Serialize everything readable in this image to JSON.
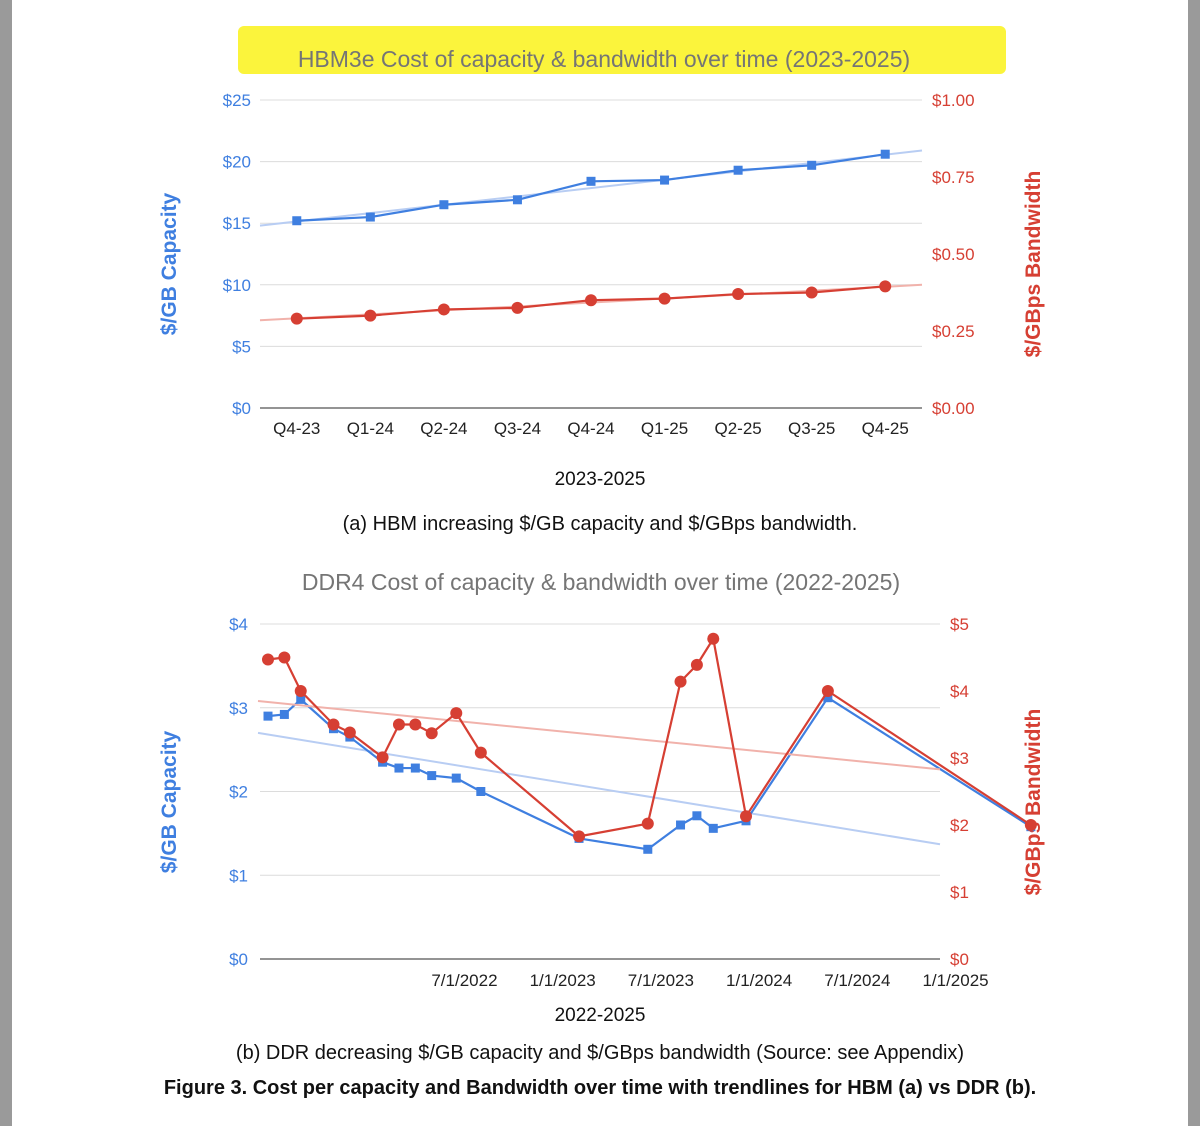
{
  "colors": {
    "capacity": "#3f7fe0",
    "bandwidth": "#d63f33",
    "capacity_trend": "#b8cdf3",
    "bandwidth_trend": "#f1b2ab",
    "title_gray": "#757575",
    "grid": "#dcdcdc",
    "highlight": "#fbf43c"
  },
  "chart_data": [
    {
      "type": "line",
      "title": "HBM3e Cost of capacity & bandwidth over time (2023-2025)",
      "xlabel": "2023-2025",
      "ylabel_left": "$/GB Capacity",
      "ylabel_right": "$/GBps Bandwidth",
      "categories": [
        "Q4-23",
        "Q1-24",
        "Q2-24",
        "Q3-24",
        "Q4-24",
        "Q1-25",
        "Q2-25",
        "Q3-25",
        "Q4-25"
      ],
      "left_ticks": [
        "$0",
        "$5",
        "$10",
        "$15",
        "$20",
        "$25"
      ],
      "right_ticks": [
        "$0.00",
        "$0.25",
        "$0.50",
        "$0.75",
        "$1.00"
      ],
      "ylim_left": [
        0,
        25
      ],
      "ylim_right": [
        0,
        1.0
      ],
      "series": [
        {
          "name": "$/GB Capacity",
          "axis": "left",
          "marker": "square",
          "values": [
            15.2,
            15.5,
            16.5,
            16.9,
            18.4,
            18.5,
            19.3,
            19.7,
            20.6
          ],
          "trendline": [
            14.8,
            20.9
          ]
        },
        {
          "name": "$/GBps Bandwidth",
          "axis": "right",
          "marker": "circle",
          "values": [
            0.29,
            0.3,
            0.32,
            0.325,
            0.35,
            0.355,
            0.37,
            0.375,
            0.395
          ],
          "trendline": [
            0.285,
            0.4
          ]
        }
      ],
      "caption": "(a) HBM increasing $/GB capacity and $/GBps bandwidth."
    },
    {
      "type": "line",
      "title": "DDR4 Cost of capacity & bandwidth over time (2022-2025)",
      "xlabel": "2022-2025",
      "ylabel_left": "$/GB Capacity",
      "ylabel_right": "$/GBps Bandwidth",
      "x_tick_labels": [
        "7/1/2022",
        "1/1/2023",
        "7/1/2023",
        "1/1/2024",
        "7/1/2024",
        "1/1/2025"
      ],
      "x_tick_months": [
        6,
        12,
        18,
        24,
        30,
        36
      ],
      "xlim_months": [
        -6,
        34.5
      ],
      "left_ticks": [
        "$0",
        "$1",
        "$2",
        "$3",
        "$4"
      ],
      "right_ticks": [
        "$0",
        "$1",
        "$2",
        "$3",
        "$4",
        "$5"
      ],
      "ylim_left": [
        0,
        4
      ],
      "ylim_right": [
        0,
        5
      ],
      "series": [
        {
          "name": "$/GB Capacity",
          "axis": "left",
          "marker": "square",
          "x": [
            -6,
            -5,
            -4,
            -2,
            -1,
            1,
            2,
            3,
            4,
            5.5,
            7,
            13,
            17.2,
            19.2,
            20.2,
            21.2,
            23.2,
            28.2,
            40.6
          ],
          "values": [
            2.9,
            2.92,
            3.1,
            2.75,
            2.65,
            2.35,
            2.28,
            2.28,
            2.19,
            2.16,
            2.0,
            1.44,
            1.31,
            1.6,
            1.71,
            1.56,
            1.65,
            3.12,
            1.58
          ],
          "trendline": [
            2.7,
            1.37
          ]
        },
        {
          "name": "$/GBps Bandwidth",
          "axis": "right",
          "marker": "circle",
          "x": [
            -6,
            -5,
            -4,
            -2,
            -1,
            1,
            2,
            3,
            4,
            5.5,
            7,
            13,
            17.2,
            19.2,
            20.2,
            21.2,
            23.2,
            28.2,
            40.6
          ],
          "values": [
            4.47,
            4.5,
            4.0,
            3.5,
            3.38,
            3.01,
            3.5,
            3.5,
            3.37,
            3.67,
            3.08,
            1.83,
            2.02,
            4.14,
            4.39,
            4.78,
            2.13,
            4.0,
            2.0
          ],
          "trendline": [
            3.85,
            2.83
          ]
        }
      ],
      "caption": "(b) DDR decreasing $/GB capacity and $/GBps bandwidth (Source: see Appendix)"
    }
  ],
  "figure_caption": "Figure 3. Cost per capacity and Bandwidth over time with trendlines for HBM (a) vs DDR (b)."
}
